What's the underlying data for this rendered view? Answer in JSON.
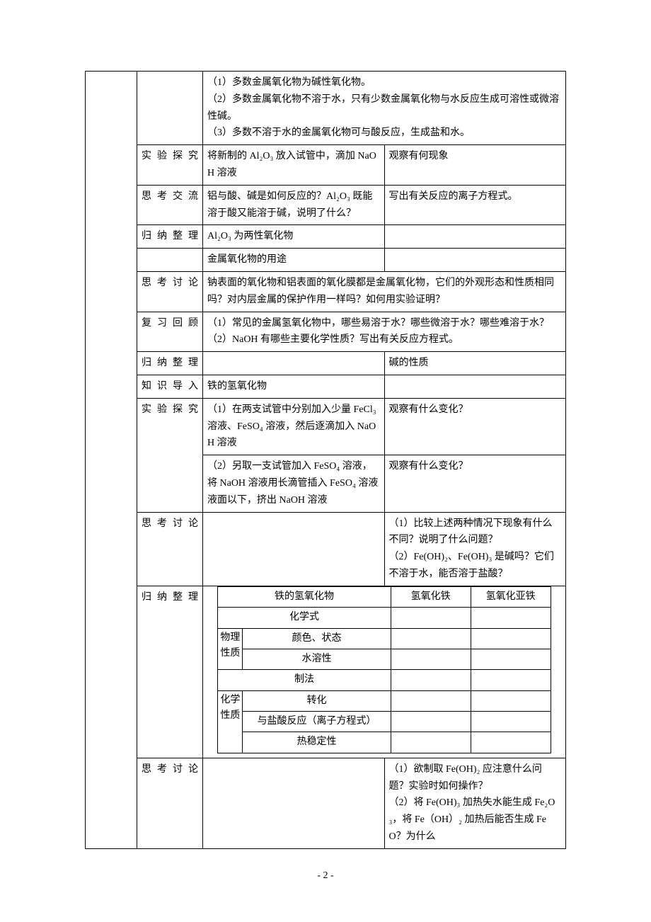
{
  "colors": {
    "border": "#000000",
    "background": "#ffffff",
    "text": "#000000"
  },
  "fonts": {
    "body_family": "SimSun",
    "body_size_pt": 10.5,
    "line_height": 1.7
  },
  "rows": {
    "r1": {
      "p1": "（1）多数金属氧化物为碱性氧化物。",
      "p2": "（2）多数金属氧化物不溶于水，只有少数金属氧化物与水反应生成可溶性或微溶性碱。",
      "p3": "（3）多数不溶于水的金属氧化物可与酸反应，生成盐和水。"
    },
    "r2": {
      "label": "实验探究",
      "mid": "将新制的 Al₂O₃ 放入试管中，滴加 NaOH 溶液",
      "right": "观察有何现象"
    },
    "r3": {
      "label": "思考交流",
      "mid": "铝与酸、碱是如何反应的？Al₂O₃ 既能溶于酸又能溶于碱，说明了什么？",
      "right": "写出有关反应的离子方程式。"
    },
    "r4": {
      "label": "归纳整理",
      "mid": "Al₂O₃ 为两性氧化物"
    },
    "r5": {
      "mid": "金属氧化物的用途"
    },
    "r6": {
      "label": "思考讨论",
      "mid": "钠表面的氧化物和铝表面的氧化膜都是金属氧化物，它们的外观形态和性质相同吗？对内层金属的保护作用一样吗？如何用实验证明？"
    },
    "r7": {
      "label": "复习回顾",
      "p1": "（1）常见的金属氢氧化物中，哪些易溶于水？哪些微溶于水？哪些难溶于水？",
      "p2": "（2）NaOH 有哪些主要化学性质？写出有关反应方程式。"
    },
    "r8": {
      "label": "归纳整理",
      "right": "碱的性质"
    },
    "r9": {
      "label": "知识导入",
      "mid": "铁的氢氧化物"
    },
    "r10": {
      "label": "实验探究",
      "mid1": "（1）在两支试管中分别加入少量 FeCl₃ 溶液、FeSO₄ 溶液，然后逐滴加入 NaOH 溶液",
      "right1": "观察有什么变化？",
      "mid2": "（2）另取一支试管加入 FeSO₄ 溶液，将 NaOH 溶液用长滴管插入 FeSO₄ 溶液液面以下，挤出 NaOH 溶液",
      "right2": "观察有什么变化？"
    },
    "r11": {
      "label": "思考讨论",
      "right": "（1）比较上述两种情况下现象有什么不同？说明了什么问题？\n（2）Fe(OH)₂、Fe(OH)₃ 是碱吗？它们不溶于水，能否溶于盐酸？"
    },
    "r12": {
      "label": "归纳整理",
      "inner": {
        "h1": "铁的氢氧化物",
        "h2": "氢氧化铁",
        "h3": "氢氧化亚铁",
        "row_formula": "化学式",
        "group_phys": "物理性质",
        "row_color": "颜色、状态",
        "row_solub": "水溶性",
        "row_prep": "制法",
        "group_chem": "化学性质",
        "row_trans": "转化",
        "row_hcl": "与盐酸反应（离子方程式）",
        "row_heat": "热稳定性"
      }
    },
    "r13": {
      "label": "思考讨论",
      "right": "（1）欲制取 Fe(OH)₂ 应注意什么问题？实验时如何操作？\n（2）将 Fe(OH)₃ 加热失水能生成 Fe₂O₃，将 Fe（OH）₂ 加热后能否生成 FeO？为什么"
    }
  },
  "footer": {
    "page": "- 2 -"
  }
}
